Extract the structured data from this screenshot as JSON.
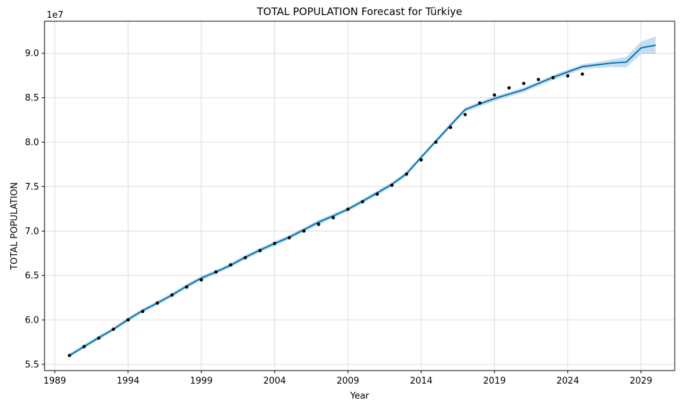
{
  "chart_data": {
    "type": "line",
    "title": "TOTAL POPULATION Forecast for Türkiye",
    "xlabel": "Year",
    "ylabel": "TOTAL POPULATION",
    "y_scale_label": "1e7",
    "grid": true,
    "xlim": [
      1988.3,
      2031.3
    ],
    "ylim": [
      54300000,
      93600000
    ],
    "x_ticks": [
      1989,
      1994,
      1999,
      2004,
      2009,
      2014,
      2019,
      2024,
      2029
    ],
    "x_tick_labels": [
      "1989",
      "1994",
      "1999",
      "2004",
      "2009",
      "2014",
      "2019",
      "2024",
      "2029"
    ],
    "y_ticks": [
      55000000,
      60000000,
      65000000,
      70000000,
      75000000,
      80000000,
      85000000,
      90000000
    ],
    "y_tick_labels": [
      "5.5",
      "6.0",
      "6.5",
      "7.0",
      "7.5",
      "8.0",
      "8.5",
      "9.0"
    ],
    "colors": {
      "forecast": "#0072B2",
      "band": "#a6cde6",
      "points": "#000000"
    },
    "observed": {
      "x": [
        1990,
        1991,
        1992,
        1993,
        1994,
        1995,
        1996,
        1997,
        1998,
        1999,
        2000,
        2001,
        2002,
        2003,
        2004,
        2005,
        2006,
        2007,
        2008,
        2009,
        2010,
        2011,
        2012,
        2013,
        2014,
        2015,
        2016,
        2017,
        2018,
        2019,
        2020,
        2021,
        2022,
        2023,
        2024,
        2025
      ],
      "y": [
        56000000,
        57000000,
        57950000,
        58950000,
        60000000,
        60950000,
        61900000,
        62800000,
        63700000,
        64500000,
        65400000,
        66200000,
        67000000,
        67800000,
        68600000,
        69250000,
        70000000,
        70750000,
        71500000,
        72450000,
        73300000,
        74150000,
        75150000,
        76400000,
        78000000,
        80000000,
        81650000,
        83100000,
        84400000,
        85300000,
        86100000,
        86600000,
        87050000,
        87250000,
        87450000,
        87650000
      ]
    },
    "forecast": {
      "x": [
        1990,
        1991,
        1992,
        1993,
        1994,
        1995,
        1996,
        1997,
        1998,
        1999,
        2000,
        2001,
        2002,
        2003,
        2004,
        2005,
        2006,
        2007,
        2008,
        2009,
        2010,
        2011,
        2012,
        2013,
        2014,
        2015,
        2016,
        2017,
        2018,
        2019,
        2020,
        2021,
        2022,
        2023,
        2024,
        2025,
        2026,
        2027,
        2028,
        2029,
        2030
      ],
      "y": [
        56000000,
        57000000,
        58000000,
        58950000,
        60050000,
        61050000,
        61900000,
        62800000,
        63800000,
        64700000,
        65400000,
        66150000,
        67050000,
        67850000,
        68600000,
        69300000,
        70150000,
        71000000,
        71700000,
        72450000,
        73350000,
        74300000,
        75250000,
        76450000,
        78300000,
        80100000,
        81900000,
        83650000,
        84300000,
        84900000,
        85400000,
        85900000,
        86600000,
        87300000,
        87900000,
        88500000,
        88700000,
        88900000,
        89000000,
        90600000,
        90900000
      ]
    },
    "band": {
      "lower": [
        55800000,
        56800000,
        57750000,
        58750000,
        59800000,
        60800000,
        61650000,
        62550000,
        63550000,
        64450000,
        65150000,
        65900000,
        66800000,
        67600000,
        68300000,
        69050000,
        69900000,
        70700000,
        71450000,
        72200000,
        73100000,
        74000000,
        75000000,
        76200000,
        78050000,
        79850000,
        81650000,
        83400000,
        84000000,
        84600000,
        85100000,
        85600000,
        86300000,
        87000000,
        87600000,
        88200000,
        88350000,
        88450000,
        88400000,
        89900000,
        89900000
      ],
      "upper": [
        56250000,
        57250000,
        58250000,
        59200000,
        60300000,
        61300000,
        62150000,
        63050000,
        64050000,
        64950000,
        65650000,
        66400000,
        67300000,
        68100000,
        68850000,
        69550000,
        70400000,
        71250000,
        71950000,
        72700000,
        73600000,
        74550000,
        75500000,
        76700000,
        78550000,
        80350000,
        82150000,
        83900000,
        84550000,
        85150000,
        85650000,
        86150000,
        86850000,
        87550000,
        88150000,
        88750000,
        89000000,
        89300000,
        89600000,
        91300000,
        91900000
      ]
    }
  }
}
